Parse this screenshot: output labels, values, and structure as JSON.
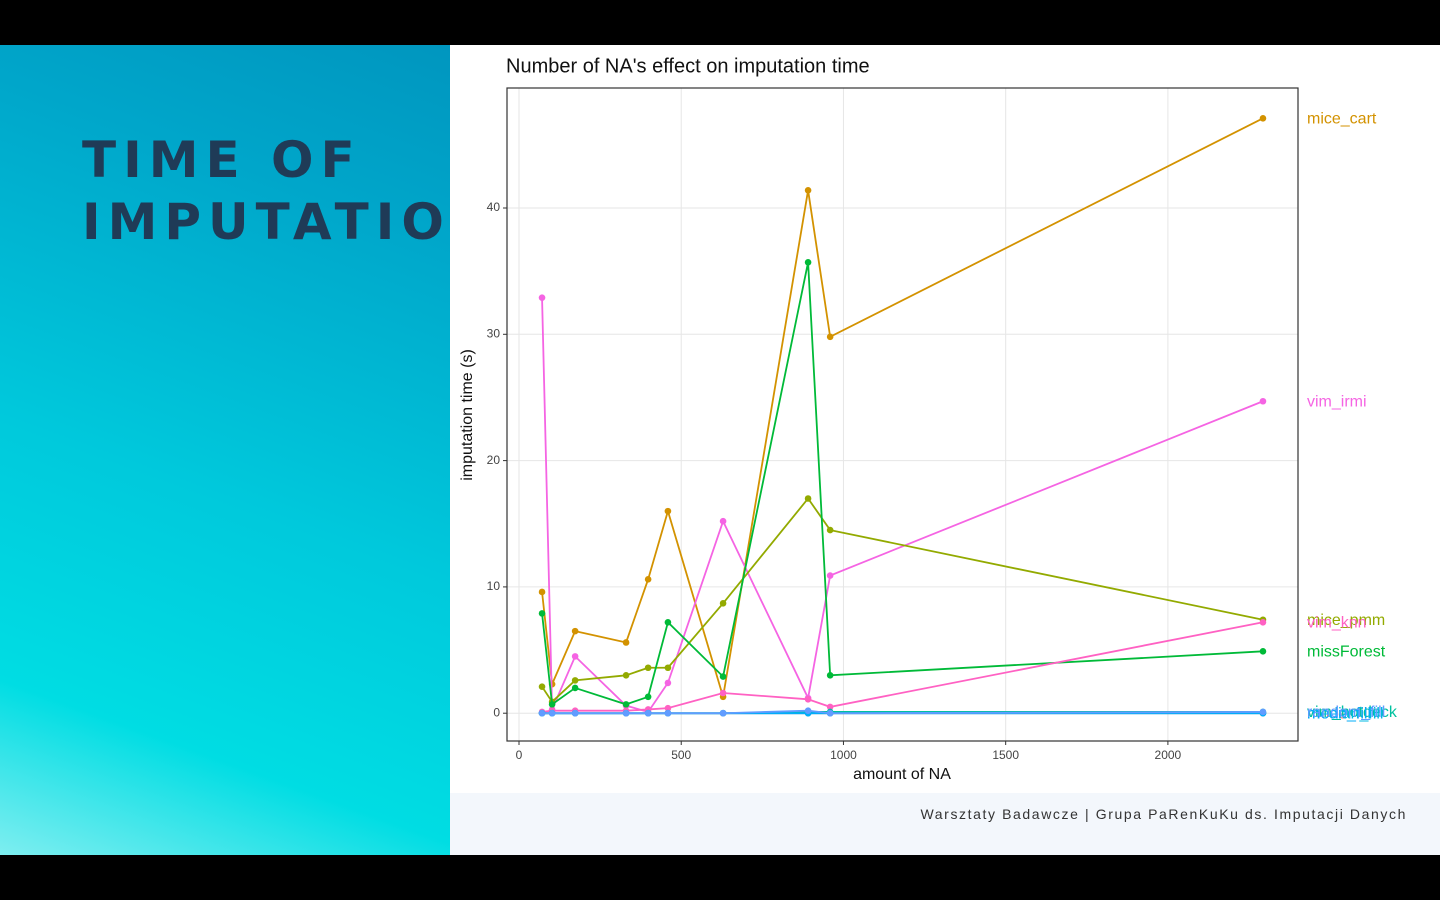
{
  "slide": {
    "title": "TIME OF IMPUTATION",
    "footer": "Warsztaty Badawcze | Grupa PaRenKuKu ds. Imputacji Danych"
  },
  "chart_data": {
    "type": "line",
    "title": "Number of NA's effect on imputation time",
    "x_label": "amount of NA",
    "y_label": "imputation time (s)",
    "x": [
      71,
      102,
      173,
      330,
      398,
      459,
      629,
      891,
      959,
      2293
    ],
    "xlim": [
      -37,
      2401
    ],
    "ylim": [
      -2.2,
      49.5
    ],
    "xticks": [
      0,
      500,
      1000,
      1500,
      2000
    ],
    "yticks": [
      0,
      10,
      20,
      30,
      40
    ],
    "grid": true,
    "series": [
      {
        "name": "mice_cart",
        "color": "#D39200",
        "values": [
          9.6,
          2.3,
          6.5,
          5.6,
          10.6,
          16.0,
          1.3,
          41.4,
          29.8,
          47.1
        ]
      },
      {
        "name": "vim_irmi",
        "color": "#F564E3",
        "values": [
          32.9,
          0.3,
          4.5,
          0.6,
          0.1,
          2.4,
          15.2,
          1.2,
          10.9,
          24.7
        ]
      },
      {
        "name": "mice_pmm",
        "color": "#93AA00",
        "values": [
          2.1,
          0.9,
          2.6,
          3.0,
          3.6,
          3.6,
          8.7,
          17.0,
          14.5,
          7.4
        ]
      },
      {
        "name": "missForest",
        "color": "#00BA38",
        "values": [
          7.9,
          0.7,
          2.0,
          0.7,
          1.3,
          7.2,
          2.9,
          35.7,
          3.0,
          4.9
        ]
      },
      {
        "name": "vim_knn",
        "color": "#FF61C3",
        "values": [
          0.1,
          0.2,
          0.2,
          0.2,
          0.3,
          0.4,
          1.6,
          1.1,
          0.5,
          7.2
        ]
      },
      {
        "name": "mode_fill",
        "color": "#F8766D",
        "values": [
          0,
          0,
          0,
          0,
          0,
          0,
          0,
          0,
          0,
          0
        ]
      },
      {
        "name": "vim_hotdeck",
        "color": "#00C19F",
        "values": [
          0,
          0,
          0,
          0,
          0,
          0,
          0,
          0.1,
          0.1,
          0.1
        ]
      },
      {
        "name": "median_fill",
        "color": "#00B9E3",
        "values": [
          0,
          0,
          0,
          0,
          0,
          0,
          0,
          0,
          0,
          0
        ]
      },
      {
        "name": "mean_fill",
        "color": "#00ADFA",
        "values": [
          0,
          0,
          0,
          0,
          0,
          0,
          0,
          0,
          0,
          0
        ]
      },
      {
        "name": "random_fill",
        "color": "#619CFF",
        "values": [
          0,
          0,
          0,
          0,
          0,
          0,
          0,
          0.2,
          0,
          0.1
        ]
      }
    ]
  }
}
